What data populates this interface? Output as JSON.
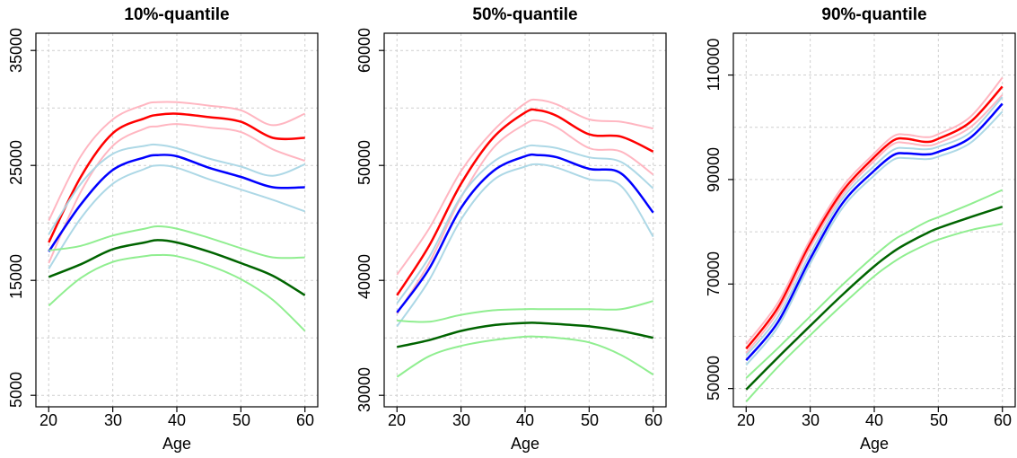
{
  "chart_data": [
    {
      "type": "line",
      "title": "10%-quantile",
      "xlabel": "Age",
      "ylabel": "",
      "xlim": [
        18,
        62
      ],
      "ylim": [
        4000,
        36500
      ],
      "xticks": [
        "20",
        "30",
        "40",
        "50",
        "60"
      ],
      "yticks": [
        "5000",
        "15000",
        "25000",
        "35000"
      ],
      "x": [
        20,
        25,
        30,
        35,
        37,
        40,
        45,
        50,
        55,
        60
      ],
      "series": [
        {
          "color": "#ffb6c1",
          "width": 2,
          "values": [
            20200,
            25800,
            29000,
            30300,
            30500,
            30500,
            30200,
            29800,
            28500,
            29500
          ]
        },
        {
          "color": "#ff0000",
          "width": 2.5,
          "values": [
            18300,
            24000,
            27800,
            29100,
            29400,
            29500,
            29200,
            28800,
            27400,
            27400
          ]
        },
        {
          "color": "#ffb6c1",
          "width": 2,
          "values": [
            16500,
            22700,
            26700,
            28200,
            28400,
            28600,
            28300,
            27900,
            26400,
            25400
          ]
        },
        {
          "color": "#add8e6",
          "width": 2,
          "values": [
            19000,
            23400,
            26000,
            26700,
            26800,
            26500,
            25600,
            24900,
            24100,
            25100
          ]
        },
        {
          "color": "#0000ff",
          "width": 2.5,
          "values": [
            17500,
            21600,
            24600,
            25700,
            25900,
            25800,
            24800,
            24000,
            23100,
            23100
          ]
        },
        {
          "color": "#add8e6",
          "width": 2,
          "values": [
            16000,
            20400,
            23400,
            24700,
            25000,
            24800,
            23800,
            22900,
            22000,
            21000
          ]
        },
        {
          "color": "#90ee90",
          "width": 2,
          "values": [
            17600,
            18000,
            18900,
            19500,
            19700,
            19500,
            18700,
            17800,
            17000,
            17000
          ]
        },
        {
          "color": "#006400",
          "width": 2.5,
          "values": [
            15300,
            16400,
            17700,
            18300,
            18500,
            18300,
            17500,
            16500,
            15400,
            13700
          ]
        },
        {
          "color": "#90ee90",
          "width": 2,
          "values": [
            12800,
            15200,
            16600,
            17100,
            17200,
            17100,
            16300,
            15100,
            13300,
            10600
          ]
        }
      ]
    },
    {
      "type": "line",
      "title": "50%-quantile",
      "xlabel": "Age",
      "ylabel": "",
      "xlim": [
        18,
        62
      ],
      "ylim": [
        29000,
        61500
      ],
      "xticks": [
        "20",
        "30",
        "40",
        "50",
        "60"
      ],
      "yticks": [
        "30000",
        "40000",
        "50000",
        "60000"
      ],
      "x": [
        20,
        25,
        30,
        35,
        40,
        42,
        45,
        50,
        55,
        60
      ],
      "series": [
        {
          "color": "#ffb6c1",
          "width": 2,
          "values": [
            40500,
            44500,
            49500,
            53000,
            55400,
            55700,
            55300,
            54000,
            53800,
            53200
          ]
        },
        {
          "color": "#ff0000",
          "width": 2.5,
          "values": [
            38700,
            43000,
            48400,
            52400,
            54600,
            54800,
            54300,
            52700,
            52500,
            51200
          ]
        },
        {
          "color": "#ffb6c1",
          "width": 2,
          "values": [
            37100,
            41500,
            47200,
            51500,
            53600,
            53900,
            53300,
            51500,
            51200,
            49200
          ]
        },
        {
          "color": "#add8e6",
          "width": 2,
          "values": [
            38000,
            42000,
            47300,
            50300,
            51600,
            51700,
            51500,
            50700,
            50300,
            48000
          ]
        },
        {
          "color": "#0000ff",
          "width": 2.5,
          "values": [
            37200,
            41000,
            46300,
            49500,
            50800,
            50900,
            50700,
            49700,
            49300,
            45900
          ]
        },
        {
          "color": "#add8e6",
          "width": 2,
          "values": [
            36000,
            40000,
            45300,
            48700,
            49900,
            50100,
            49800,
            48800,
            48200,
            43800
          ]
        },
        {
          "color": "#90ee90",
          "width": 2,
          "values": [
            36500,
            36400,
            37000,
            37400,
            37500,
            37500,
            37500,
            37500,
            37500,
            38200
          ]
        },
        {
          "color": "#006400",
          "width": 2.5,
          "values": [
            34200,
            34800,
            35600,
            36100,
            36300,
            36300,
            36200,
            36000,
            35600,
            35000
          ]
        },
        {
          "color": "#90ee90",
          "width": 2,
          "values": [
            31600,
            33400,
            34300,
            34800,
            35100,
            35100,
            35000,
            34600,
            33500,
            31800
          ]
        }
      ]
    },
    {
      "type": "line",
      "title": "90%-quantile",
      "xlabel": "Age",
      "ylabel": "",
      "xlim": [
        18,
        62
      ],
      "ylim": [
        46500,
        118000
      ],
      "xticks": [
        "20",
        "30",
        "40",
        "50",
        "60"
      ],
      "yticks": [
        "50000",
        "70000",
        "90000",
        "110000"
      ],
      "x": [
        20,
        25,
        30,
        35,
        40,
        43,
        45,
        48,
        50,
        55,
        60
      ],
      "series": [
        {
          "color": "#ffb6c1",
          "width": 2,
          "values": [
            58500,
            66500,
            78500,
            88500,
            95000,
            98300,
            98600,
            98100,
            98700,
            102000,
            109500
          ]
        },
        {
          "color": "#ff0000",
          "width": 2.5,
          "values": [
            57600,
            65600,
            77700,
            87700,
            94300,
            97500,
            97800,
            97200,
            97800,
            101000,
            107800
          ]
        },
        {
          "color": "#ffb6c1",
          "width": 2,
          "values": [
            56800,
            64800,
            77000,
            87000,
            93600,
            96800,
            97000,
            96500,
            97000,
            100000,
            106200
          ]
        },
        {
          "color": "#add8e6",
          "width": 2,
          "values": [
            56300,
            63800,
            75800,
            86300,
            92600,
            95700,
            96000,
            95800,
            96300,
            99000,
            105800
          ]
        },
        {
          "color": "#0000ff",
          "width": 2.5,
          "values": [
            55400,
            62800,
            74800,
            85400,
            91700,
            94700,
            95000,
            94800,
            95300,
            98000,
            104500
          ]
        },
        {
          "color": "#add8e6",
          "width": 2,
          "values": [
            54500,
            61900,
            73900,
            84500,
            90800,
            93800,
            94100,
            93900,
            94400,
            97000,
            103000
          ]
        },
        {
          "color": "#90ee90",
          "width": 2,
          "values": [
            52000,
            57800,
            63800,
            69800,
            75400,
            78400,
            79800,
            81800,
            82800,
            85300,
            88000
          ]
        },
        {
          "color": "#006400",
          "width": 2.5,
          "values": [
            49800,
            56000,
            62000,
            67900,
            73400,
            76200,
            77700,
            79600,
            80700,
            82800,
            84800
          ]
        },
        {
          "color": "#90ee90",
          "width": 2,
          "values": [
            47500,
            54200,
            60200,
            66000,
            71500,
            74200,
            75700,
            77500,
            78500,
            80300,
            81500
          ]
        }
      ]
    }
  ]
}
